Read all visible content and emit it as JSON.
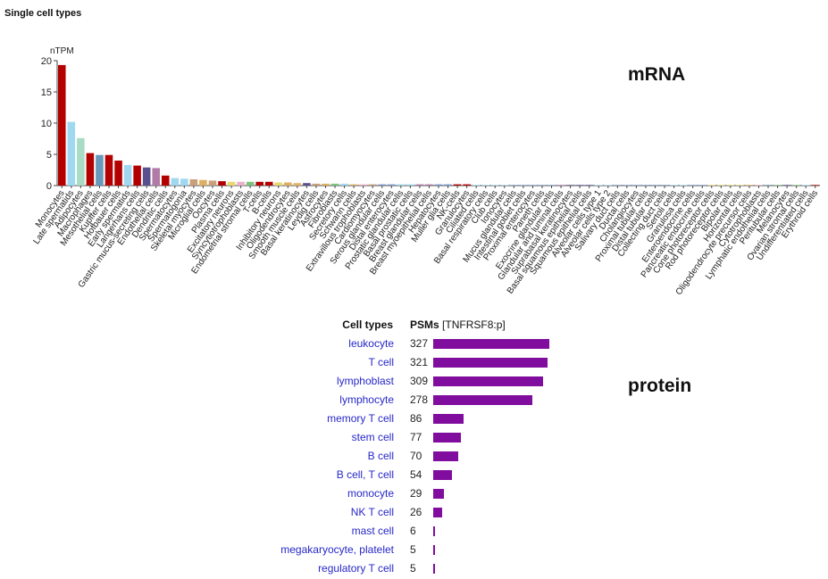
{
  "page_title": "Single cell types",
  "mrna_label": "mRNA",
  "protein_label": "protein",
  "chart_data": [
    {
      "type": "bar",
      "ylabel": "nTPM",
      "ylim": [
        0,
        20
      ],
      "yticks": [
        0,
        5,
        10,
        15,
        20
      ],
      "categories": [
        "Monocytes",
        "Late spermatids",
        "Adipocytes",
        "Macrophages",
        "Mesothelial cells",
        "Kupffer cells",
        "Hofbauer cells",
        "Early spermatids",
        "Langerhans cells",
        "Gastric mucus-secreting cells",
        "Endothelial cells",
        "Dendritic cells",
        "Spermatocytes",
        "Spermatogonia",
        "Skeletal myocytes",
        "Microglial cells",
        "Oocytes",
        "Plasma cells",
        "Excitatory neurons",
        "Syncytiotrophoblasts",
        "Endometrial stromal cells",
        "T-cells",
        "B-cells",
        "Inhibitory neurons",
        "Oligodendrocytes",
        "Smooth muscle cells",
        "Basal keratinocytes",
        "Leydig cells",
        "Astrocytes",
        "Fibroblasts",
        "Secretory cells",
        "Schwann cells",
        "Extravillous trophoblasts",
        "Cardiomyocytes",
        "Serous glandular cells",
        "Distal enterocytes",
        "Prostatic glandular cells",
        "Basal prostatic cells",
        "Breast glandular cells",
        "Breast myoepithelial cells",
        "Hepatocytes",
        "Muller glia cells",
        "NK-cells",
        "Granulocytes",
        "Ciliated cells",
        "Basal respiratory cells",
        "Club cells",
        "Ionocytes",
        "Mucus glandular cells",
        "Intestinal goblet cells",
        "Proximal enterocytes",
        "Paneth cells",
        "Exocrine glandular cells",
        "Glandular and luminal cells",
        "Suprabasal keratinocytes",
        "Basal squamous epithelial cells",
        "Squamous epithelial cells",
        "Alveolar cells type 1",
        "Alveolar cells type 2",
        "Salivary duct cells",
        "Ductal cells",
        "Cholangiocytes",
        "Proximal tubular cells",
        "Distal tubular cells",
        "Collecting duct cells",
        "Sertoli cells",
        "Granulosa cells",
        "Enteroendocrine cells",
        "Pancreatic endocrine cells",
        "Cone photoreceptor cells",
        "Rod photoreceptor cells",
        "Bipolar cells",
        "Horizontal cells",
        "Oligodendrocyte precursor cells",
        "Cytotrophoblasts",
        "Lymphatic endothelial cells",
        "Peritubular cells",
        "Melanocytes",
        "Ovarian stromal cells",
        "Undifferentiated cells",
        "Erythroid cells"
      ],
      "values": [
        19.3,
        10.2,
        7.6,
        5.2,
        4.9,
        4.9,
        4.0,
        3.3,
        3.2,
        2.9,
        2.8,
        1.6,
        1.2,
        1.1,
        1.0,
        0.9,
        0.8,
        0.7,
        0.6,
        0.6,
        0.6,
        0.6,
        0.6,
        0.5,
        0.5,
        0.4,
        0.4,
        0.3,
        0.3,
        0.3,
        0.3,
        0.2,
        0.2,
        0.2,
        0.2,
        0.2,
        0.2,
        0.2,
        0.2,
        0.2,
        0.2,
        0.2,
        0.2,
        0.2,
        0.1,
        0.1,
        0.1,
        0.1,
        0.1,
        0.1,
        0.1,
        0.1,
        0.1,
        0.1,
        0.1,
        0.1,
        0.1,
        0.1,
        0.1,
        0.1,
        0.1,
        0.1,
        0.1,
        0.1,
        0.1,
        0.1,
        0.1,
        0.1,
        0.1,
        0.1,
        0.1,
        0.1,
        0.1,
        0.1,
        0.1,
        0.1,
        0.1,
        0.1,
        0.1,
        0.1,
        0.1
      ],
      "colors": [
        "#b30000",
        "#9fd8f0",
        "#a8dcc4",
        "#b30000",
        "#6699bb",
        "#b30000",
        "#b30000",
        "#9fd8f0",
        "#b30000",
        "#5a4f8e",
        "#b27aa7",
        "#b30000",
        "#9fd8f0",
        "#9fd8f0",
        "#c9a07a",
        "#e0b060",
        "#c9a07a",
        "#b30000",
        "#e8d96e",
        "#e9b0c8",
        "#7cc47c",
        "#b30000",
        "#b30000",
        "#e8d96e",
        "#e0b060",
        "#e6b468",
        "#5a4f8e",
        "#c9a07a",
        "#e0b060",
        "#7cc47c",
        "#9fd8f0",
        "#e0b060",
        "#e9b0c8",
        "#c9a07a",
        "#7a9acb",
        "#7a9acb",
        "#9fd8f0",
        "#9fd8f0",
        "#b27aa7",
        "#b27aa7",
        "#7a9acb",
        "#7a9acb",
        "#b30000",
        "#b30000",
        "#9fd8f0",
        "#9fd8f0",
        "#9fd8f0",
        "#9fd8f0",
        "#7a9acb",
        "#7a9acb",
        "#7a9acb",
        "#7a9acb",
        "#7a9acb",
        "#b27aa7",
        "#5a4f8e",
        "#5a4f8e",
        "#5a4f8e",
        "#9fd8f0",
        "#9fd8f0",
        "#7a9acb",
        "#7a9acb",
        "#7a9acb",
        "#7a9acb",
        "#7a9acb",
        "#7a9acb",
        "#9fd8f0",
        "#9fd8f0",
        "#7a9acb",
        "#7a9acb",
        "#e8d96e",
        "#e8d96e",
        "#e8d96e",
        "#e8d96e",
        "#e0b060",
        "#e9b0c8",
        "#6699bb",
        "#7cc47c",
        "#5a4f8e",
        "#7cc47c",
        "#9fd8f0",
        "#b30000"
      ]
    },
    {
      "type": "bar",
      "orientation": "horizontal",
      "header_celltypes": "Cell types",
      "header_psms": "PSMs",
      "header_protein": "[TNFRSF8:p]",
      "bar_color": "#800d9d",
      "xlim": [
        0,
        327
      ],
      "rows": [
        {
          "name": "leukocyte",
          "value": 327
        },
        {
          "name": "T cell",
          "value": 321
        },
        {
          "name": "lymphoblast",
          "value": 309
        },
        {
          "name": "lymphocyte",
          "value": 278
        },
        {
          "name": "memory T cell",
          "value": 86
        },
        {
          "name": "stem cell",
          "value": 77
        },
        {
          "name": "B cell",
          "value": 70
        },
        {
          "name": "B cell, T cell",
          "value": 54
        },
        {
          "name": "monocyte",
          "value": 29
        },
        {
          "name": "NK T cell",
          "value": 26
        },
        {
          "name": "mast cell",
          "value": 6
        },
        {
          "name": "megakaryocyte, platelet",
          "value": 5
        },
        {
          "name": "regulatory T cell",
          "value": 5
        }
      ]
    }
  ]
}
